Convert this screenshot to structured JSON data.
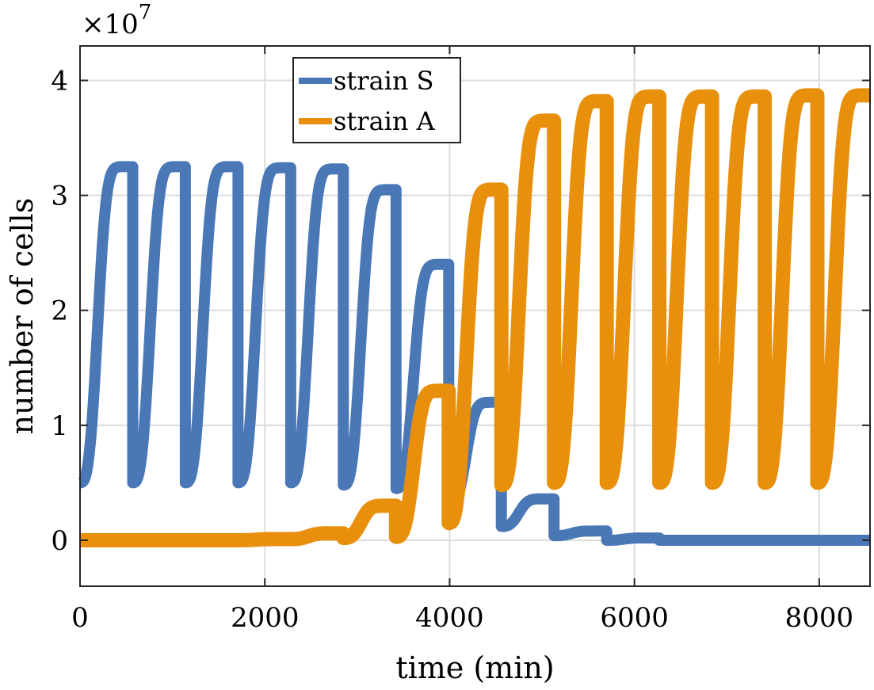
{
  "chart_data": {
    "type": "line",
    "title": "",
    "xlabel": "time (min)",
    "ylabel": "number of cells",
    "y_exponent_label": "×10^7",
    "y_multiplier": 10000000,
    "xlim": [
      0,
      8550
    ],
    "ylim": [
      -0.4,
      4.3
    ],
    "xticks": [
      0,
      2000,
      4000,
      6000,
      8000
    ],
    "yticks": [
      0,
      1,
      2,
      3,
      4
    ],
    "grid": true,
    "legend_position": "top-center",
    "cycle_period_min": 570,
    "series": [
      {
        "name": "strain S",
        "color": "#4a78b6",
        "cycles": [
          {
            "t0": 0,
            "t1": 570,
            "start": 0.5,
            "peak": 3.25
          },
          {
            "t0": 570,
            "t1": 1140,
            "start": 0.5,
            "peak": 3.25
          },
          {
            "t0": 1140,
            "t1": 1710,
            "start": 0.5,
            "peak": 3.25
          },
          {
            "t0": 1710,
            "t1": 2280,
            "start": 0.5,
            "peak": 3.24
          },
          {
            "t0": 2280,
            "t1": 2850,
            "start": 0.5,
            "peak": 3.23
          },
          {
            "t0": 2850,
            "t1": 3420,
            "start": 0.48,
            "peak": 3.05
          },
          {
            "t0": 3420,
            "t1": 3990,
            "start": 0.45,
            "peak": 2.4
          },
          {
            "t0": 3990,
            "t1": 4560,
            "start": 0.3,
            "peak": 1.2
          },
          {
            "t0": 4560,
            "t1": 5130,
            "start": 0.12,
            "peak": 0.36
          },
          {
            "t0": 5130,
            "t1": 5700,
            "start": 0.04,
            "peak": 0.08
          },
          {
            "t0": 5700,
            "t1": 6270,
            "start": 0.0,
            "peak": 0.02
          },
          {
            "t0": 6270,
            "t1": 8550,
            "start": 0.0,
            "peak": 0.0
          }
        ]
      },
      {
        "name": "strain A",
        "color": "#e8900c",
        "cycles": [
          {
            "t0": 0,
            "t1": 570,
            "start": 0.0,
            "peak": 0.0
          },
          {
            "t0": 570,
            "t1": 1140,
            "start": 0.0,
            "peak": 0.0
          },
          {
            "t0": 1140,
            "t1": 1710,
            "start": 0.0,
            "peak": 0.0
          },
          {
            "t0": 1710,
            "t1": 2280,
            "start": 0.0,
            "peak": 0.01
          },
          {
            "t0": 2280,
            "t1": 2850,
            "start": 0.01,
            "peak": 0.06
          },
          {
            "t0": 2850,
            "t1": 3420,
            "start": 0.02,
            "peak": 0.3
          },
          {
            "t0": 3420,
            "t1": 3990,
            "start": 0.03,
            "peak": 1.3
          },
          {
            "t0": 3990,
            "t1": 4560,
            "start": 0.15,
            "peak": 3.05
          },
          {
            "t0": 4560,
            "t1": 5130,
            "start": 0.48,
            "peak": 3.65
          },
          {
            "t0": 5130,
            "t1": 5700,
            "start": 0.5,
            "peak": 3.82
          },
          {
            "t0": 5700,
            "t1": 6270,
            "start": 0.5,
            "peak": 3.86
          },
          {
            "t0": 6270,
            "t1": 6840,
            "start": 0.5,
            "peak": 3.86
          },
          {
            "t0": 6840,
            "t1": 7410,
            "start": 0.5,
            "peak": 3.86
          },
          {
            "t0": 7410,
            "t1": 7980,
            "start": 0.5,
            "peak": 3.87
          },
          {
            "t0": 7980,
            "t1": 8550,
            "start": 0.5,
            "peak": 3.87
          }
        ]
      }
    ]
  }
}
